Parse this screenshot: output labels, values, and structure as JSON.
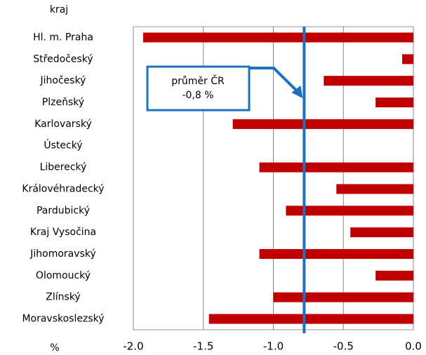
{
  "chart_data": {
    "type": "barh",
    "y_label": "kraj",
    "x_label": "%",
    "categories": [
      "Hl. m. Praha",
      "Středočeský",
      "Jihočeský",
      "Plzeňský",
      "Karlovarský",
      "Ústecký",
      "Liberecký",
      "Královéhradecký",
      "Pardubický",
      "Kraj Vysočina",
      "Jihomoravský",
      "Olomoucký",
      "Zlínský",
      "Moravskoslezský"
    ],
    "values": [
      -1.93,
      -0.08,
      -0.64,
      -0.27,
      -1.29,
      0,
      -1.1,
      -0.55,
      -0.91,
      -0.45,
      -1.1,
      -0.27,
      -1.0,
      -1.46
    ],
    "color": "#c00000",
    "xlim": [
      -2,
      0
    ],
    "xticks": [
      {
        "value": -2,
        "label": "-2.0"
      },
      {
        "value": -1.5,
        "label": "-1.5"
      },
      {
        "value": -1,
        "label": "-1.0"
      },
      {
        "value": -0.5,
        "label": "-0.5"
      },
      {
        "value": 0,
        "label": "0.0"
      }
    ],
    "grid": true,
    "reference_line": {
      "value": -0.78,
      "color": "#1a72c0",
      "label_lines": [
        "průměr ČR",
        "-0,8 %"
      ]
    }
  }
}
